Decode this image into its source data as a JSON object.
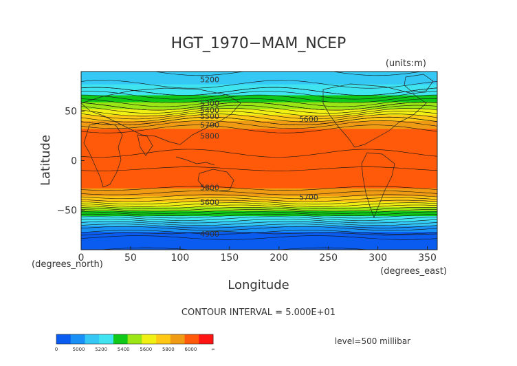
{
  "chart_data": {
    "type": "heatmap",
    "title": "HGT_1970−MAM_NCEP",
    "units": "(units:m)",
    "xlabel": "Longitude",
    "ylabel": "Latitude",
    "x_unit_label": "(degrees_east)",
    "y_unit_label": "(degrees_north)",
    "xlim": [
      0,
      360
    ],
    "ylim": [
      -90,
      90
    ],
    "x_ticks": [
      "0",
      "50",
      "100",
      "150",
      "200",
      "250",
      "300",
      "350"
    ],
    "y_ticks": [
      "50",
      "0",
      "−50"
    ],
    "contour_interval_text": "CONTOUR INTERVAL = 5.000E+01",
    "level_text": "level=500 millibar",
    "contour_labels": [
      "5200",
      "5300",
      "5400",
      "5500",
      "5600",
      "5700",
      "5800",
      "5800",
      "5700",
      "5600",
      "4900"
    ],
    "colorbar": {
      "labels": [
        "0",
        "5000",
        "5200",
        "5400",
        "5600",
        "5800",
        "6000",
        "∞"
      ],
      "colors": [
        "#0a5cf0",
        "#1890f5",
        "#35c8f5",
        "#3fe4f0",
        "#10c818",
        "#9be614",
        "#f0f014",
        "#ffc814",
        "#f09b14",
        "#ff5a0a",
        "#ff1414"
      ]
    },
    "height_profile_by_latitude": [
      {
        "lat": 90,
        "hgt": 5150
      },
      {
        "lat": 80,
        "hgt": 5180
      },
      {
        "lat": 70,
        "hgt": 5250
      },
      {
        "lat": 60,
        "hgt": 5380
      },
      {
        "lat": 55,
        "hgt": 5450
      },
      {
        "lat": 50,
        "hgt": 5530
      },
      {
        "lat": 45,
        "hgt": 5620
      },
      {
        "lat": 40,
        "hgt": 5700
      },
      {
        "lat": 35,
        "hgt": 5770
      },
      {
        "lat": 30,
        "hgt": 5820
      },
      {
        "lat": 0,
        "hgt": 5860
      },
      {
        "lat": -25,
        "hgt": 5830
      },
      {
        "lat": -30,
        "hgt": 5780
      },
      {
        "lat": -35,
        "hgt": 5720
      },
      {
        "lat": -40,
        "hgt": 5640
      },
      {
        "lat": -45,
        "hgt": 5540
      },
      {
        "lat": -50,
        "hgt": 5430
      },
      {
        "lat": -55,
        "hgt": 5320
      },
      {
        "lat": -60,
        "hgt": 5220
      },
      {
        "lat": -65,
        "hgt": 5120
      },
      {
        "lat": -70,
        "hgt": 5020
      },
      {
        "lat": -80,
        "hgt": 4930
      },
      {
        "lat": -90,
        "hgt": 4900
      }
    ]
  }
}
